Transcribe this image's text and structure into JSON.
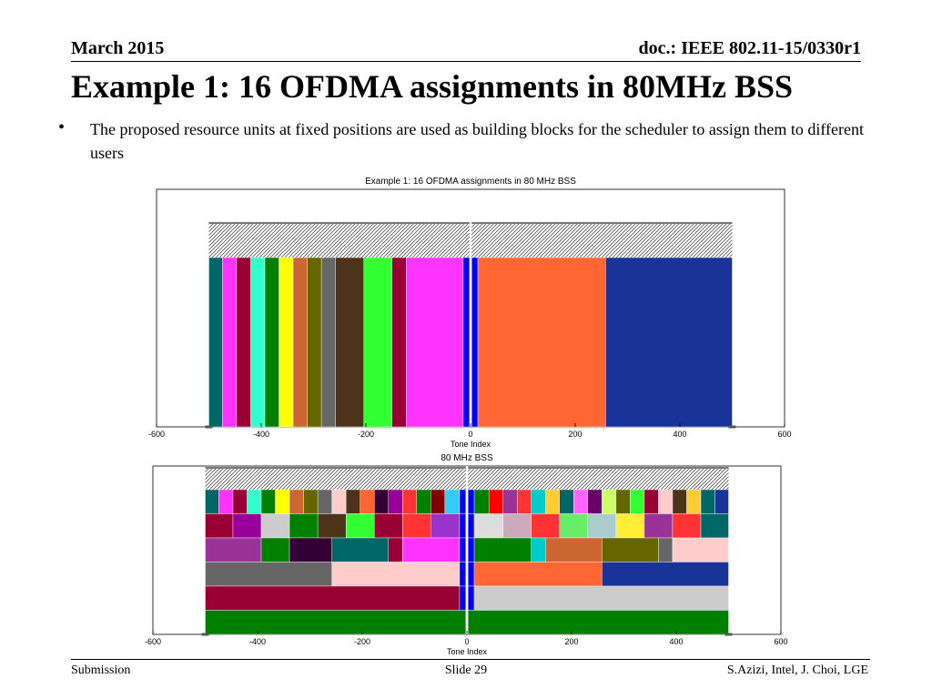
{
  "header": {
    "date": "March 2015",
    "doc_id": "doc.: IEEE 802.11-15/0330r1"
  },
  "title": "Example 1: 16 OFDMA assignments in 80MHz BSS",
  "bullet": {
    "marker": "•",
    "text": "The proposed resource units at fixed positions are used as building blocks for the scheduler to assign them to different users"
  },
  "footer": {
    "left": "Submission",
    "center": "Slide 29",
    "right": "S.Azizi, Intel, J. Choi, LGE"
  },
  "chart_data": [
    {
      "type": "bar",
      "title": "Example 1: 16 OFDMA assignments in 80 MHz BSS",
      "xlabel": "Tone Index",
      "xlim": [
        -600,
        600
      ],
      "xticks": [
        -600,
        -400,
        -200,
        0,
        200,
        400,
        600
      ],
      "hatch_band": {
        "from": -500,
        "to": 500
      },
      "assignments": [
        {
          "from": -500,
          "to": -474,
          "color": "#006666"
        },
        {
          "from": -474,
          "to": -447,
          "color": "#ff33ff"
        },
        {
          "from": -447,
          "to": -420,
          "color": "#990033"
        },
        {
          "from": -420,
          "to": -393,
          "color": "#33ffcc"
        },
        {
          "from": -393,
          "to": -366,
          "color": "#008000"
        },
        {
          "from": -366,
          "to": -339,
          "color": "#ffff00"
        },
        {
          "from": -339,
          "to": -312,
          "color": "#cc6633"
        },
        {
          "from": -312,
          "to": -285,
          "color": "#666600"
        },
        {
          "from": -285,
          "to": -258,
          "color": "#666666"
        },
        {
          "from": -258,
          "to": -204,
          "color": "#4d3319"
        },
        {
          "from": -204,
          "to": -150,
          "color": "#33ff33"
        },
        {
          "from": -150,
          "to": -123,
          "color": "#990033"
        },
        {
          "from": -123,
          "to": -14,
          "color": "#ff33ff"
        },
        {
          "from": -14,
          "to": -2,
          "color": "#0000ff"
        },
        {
          "from": 2,
          "to": 14,
          "color": "#0000ff"
        },
        {
          "from": 14,
          "to": 258,
          "color": "#ff6633"
        },
        {
          "from": 258,
          "to": 500,
          "color": "#1a3399"
        }
      ]
    },
    {
      "type": "bar",
      "title": "80 MHz BSS",
      "xlabel": "Tone Index",
      "xlim": [
        -600,
        600
      ],
      "xticks": [
        -600,
        -400,
        -200,
        0,
        200,
        400,
        600
      ],
      "hatch_band": {
        "from": -500,
        "to": 500
      },
      "rows": [
        [
          {
            "from": -500,
            "to": -474,
            "color": "#006666"
          },
          {
            "from": -474,
            "to": -447,
            "color": "#ff33ff"
          },
          {
            "from": -447,
            "to": -420,
            "color": "#990033"
          },
          {
            "from": -420,
            "to": -393,
            "color": "#33ffcc"
          },
          {
            "from": -393,
            "to": -366,
            "color": "#008000"
          },
          {
            "from": -366,
            "to": -339,
            "color": "#ffff00"
          },
          {
            "from": -339,
            "to": -312,
            "color": "#cc6633"
          },
          {
            "from": -312,
            "to": -285,
            "color": "#666600"
          },
          {
            "from": -285,
            "to": -258,
            "color": "#666666"
          },
          {
            "from": -258,
            "to": -231,
            "color": "#ffcccc"
          },
          {
            "from": -231,
            "to": -204,
            "color": "#4d3319"
          },
          {
            "from": -204,
            "to": -177,
            "color": "#ff6633"
          },
          {
            "from": -177,
            "to": -150,
            "color": "#330033"
          },
          {
            "from": -150,
            "to": -123,
            "color": "#990099"
          },
          {
            "from": -123,
            "to": -96,
            "color": "#ff3333"
          },
          {
            "from": -96,
            "to": -69,
            "color": "#008000"
          },
          {
            "from": -69,
            "to": -42,
            "color": "#800000"
          },
          {
            "from": -42,
            "to": -14,
            "color": "#33ccff"
          },
          {
            "from": -14,
            "to": -2,
            "color": "#0000ff"
          },
          {
            "from": 2,
            "to": 14,
            "color": "#0000ff"
          },
          {
            "from": 14,
            "to": 42,
            "color": "#008000"
          },
          {
            "from": 42,
            "to": 69,
            "color": "#ff0000"
          },
          {
            "from": 69,
            "to": 96,
            "color": "#993399"
          },
          {
            "from": 96,
            "to": 123,
            "color": "#ff3333"
          },
          {
            "from": 123,
            "to": 150,
            "color": "#00cccc"
          },
          {
            "from": 150,
            "to": 177,
            "color": "#ffcc33"
          },
          {
            "from": 177,
            "to": 204,
            "color": "#006666"
          },
          {
            "from": 204,
            "to": 231,
            "color": "#ff66ff"
          },
          {
            "from": 231,
            "to": 258,
            "color": "#660066"
          },
          {
            "from": 258,
            "to": 285,
            "color": "#ccff66"
          },
          {
            "from": 285,
            "to": 312,
            "color": "#666600"
          },
          {
            "from": 312,
            "to": 339,
            "color": "#33ff33"
          },
          {
            "from": 339,
            "to": 366,
            "color": "#990033"
          },
          {
            "from": 366,
            "to": 393,
            "color": "#ffcccc"
          },
          {
            "from": 393,
            "to": 420,
            "color": "#4d3319"
          },
          {
            "from": 420,
            "to": 447,
            "color": "#ffcc33"
          },
          {
            "from": 447,
            "to": 474,
            "color": "#006666"
          },
          {
            "from": 474,
            "to": 500,
            "color": "#1a3399"
          }
        ],
        [
          {
            "from": -500,
            "to": -447,
            "color": "#990033"
          },
          {
            "from": -447,
            "to": -393,
            "color": "#990099"
          },
          {
            "from": -393,
            "to": -339,
            "color": "#cccccc"
          },
          {
            "from": -339,
            "to": -285,
            "color": "#008000"
          },
          {
            "from": -285,
            "to": -231,
            "color": "#4d3319"
          },
          {
            "from": -231,
            "to": -177,
            "color": "#33ff33"
          },
          {
            "from": -177,
            "to": -123,
            "color": "#990033"
          },
          {
            "from": -123,
            "to": -69,
            "color": "#ff3333"
          },
          {
            "from": -69,
            "to": -14,
            "color": "#9933cc"
          },
          {
            "from": -14,
            "to": -2,
            "color": "#0000ff"
          },
          {
            "from": 2,
            "to": 14,
            "color": "#0000ff"
          },
          {
            "from": 14,
            "to": 69,
            "color": "#dddddd"
          },
          {
            "from": 69,
            "to": 123,
            "color": "#ccaabb"
          },
          {
            "from": 123,
            "to": 177,
            "color": "#ff3333"
          },
          {
            "from": 177,
            "to": 231,
            "color": "#66ee66"
          },
          {
            "from": 231,
            "to": 285,
            "color": "#aacccc"
          },
          {
            "from": 285,
            "to": 339,
            "color": "#ffee33"
          },
          {
            "from": 339,
            "to": 393,
            "color": "#993399"
          },
          {
            "from": 393,
            "to": 447,
            "color": "#ff3333"
          },
          {
            "from": 447,
            "to": 500,
            "color": "#006666"
          }
        ],
        [
          {
            "from": -500,
            "to": -393,
            "color": "#993399"
          },
          {
            "from": -393,
            "to": -339,
            "color": "#008000"
          },
          {
            "from": -339,
            "to": -258,
            "color": "#330033"
          },
          {
            "from": -258,
            "to": -150,
            "color": "#006666"
          },
          {
            "from": -150,
            "to": -123,
            "color": "#990033"
          },
          {
            "from": -123,
            "to": -14,
            "color": "#ff33ff"
          },
          {
            "from": -14,
            "to": -2,
            "color": "#0000ff"
          },
          {
            "from": 2,
            "to": 14,
            "color": "#0000ff"
          },
          {
            "from": 14,
            "to": 123,
            "color": "#008000"
          },
          {
            "from": 123,
            "to": 150,
            "color": "#00cccc"
          },
          {
            "from": 150,
            "to": 258,
            "color": "#cc6633"
          },
          {
            "from": 258,
            "to": 366,
            "color": "#666600"
          },
          {
            "from": 366,
            "to": 393,
            "color": "#666666"
          },
          {
            "from": 393,
            "to": 500,
            "color": "#ffcccc"
          }
        ],
        [
          {
            "from": -500,
            "to": -258,
            "color": "#666666"
          },
          {
            "from": -258,
            "to": -14,
            "color": "#ffcccc"
          },
          {
            "from": -14,
            "to": -2,
            "color": "#0000ff"
          },
          {
            "from": 2,
            "to": 14,
            "color": "#0000ff"
          },
          {
            "from": 14,
            "to": 258,
            "color": "#ff6633"
          },
          {
            "from": 258,
            "to": 500,
            "color": "#1a3399"
          }
        ],
        [
          {
            "from": -500,
            "to": -14,
            "color": "#990033"
          },
          {
            "from": -14,
            "to": -2,
            "color": "#0000ff"
          },
          {
            "from": 2,
            "to": 14,
            "color": "#0000ff"
          },
          {
            "from": 14,
            "to": 500,
            "color": "#cccccc"
          }
        ],
        [
          {
            "from": -500,
            "to": -2,
            "color": "#008000"
          },
          {
            "from": 2,
            "to": 500,
            "color": "#008000"
          }
        ]
      ]
    }
  ]
}
